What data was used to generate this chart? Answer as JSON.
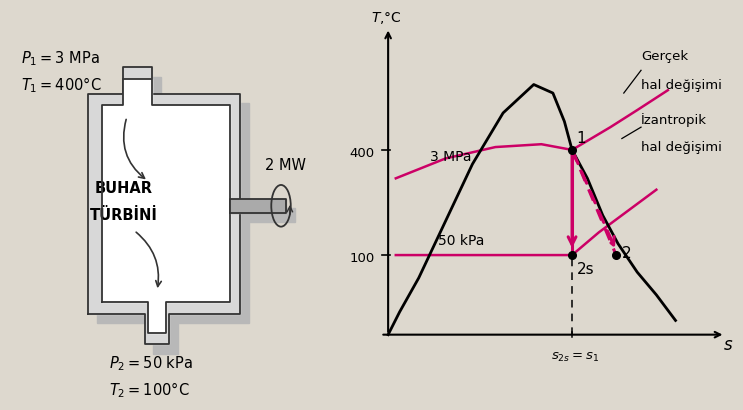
{
  "bg_color": "#ddd8ce",
  "turbine_label_line1": "BUHAR",
  "turbine_label_line2": "TÜRBİNİ",
  "p1_label": "$P_1 = 3$ MPa",
  "t1_label": "$T_1 = 400$°C",
  "p2_label": "$P_2 = 50$ kPa",
  "t2_label": "$T_2 = 100$°C",
  "mw_label": "2 MW",
  "t_axis_label": "$T$,°C",
  "s_axis_label": "$s$",
  "s_tick_label": "$s_{2s} = s_1$",
  "point1_label": "1",
  "point2_label": "2",
  "point2s_label": "2s",
  "label_3mpa": "3 MPa",
  "label_50kpa": "50 kPa",
  "legend_real_line1": "Gerçek",
  "legend_real_line2": "hal değişimi",
  "legend_iso_line1": "İzantropik",
  "legend_iso_line2": "hal değişimi",
  "pink_color": "#cc0066",
  "black_color": "#1a1a1a",
  "shadow_color": "#b8b8b8",
  "body_fill": "#d8d8d8",
  "body_edge": "#333333",
  "shaft_fill": "#aaaaaa"
}
